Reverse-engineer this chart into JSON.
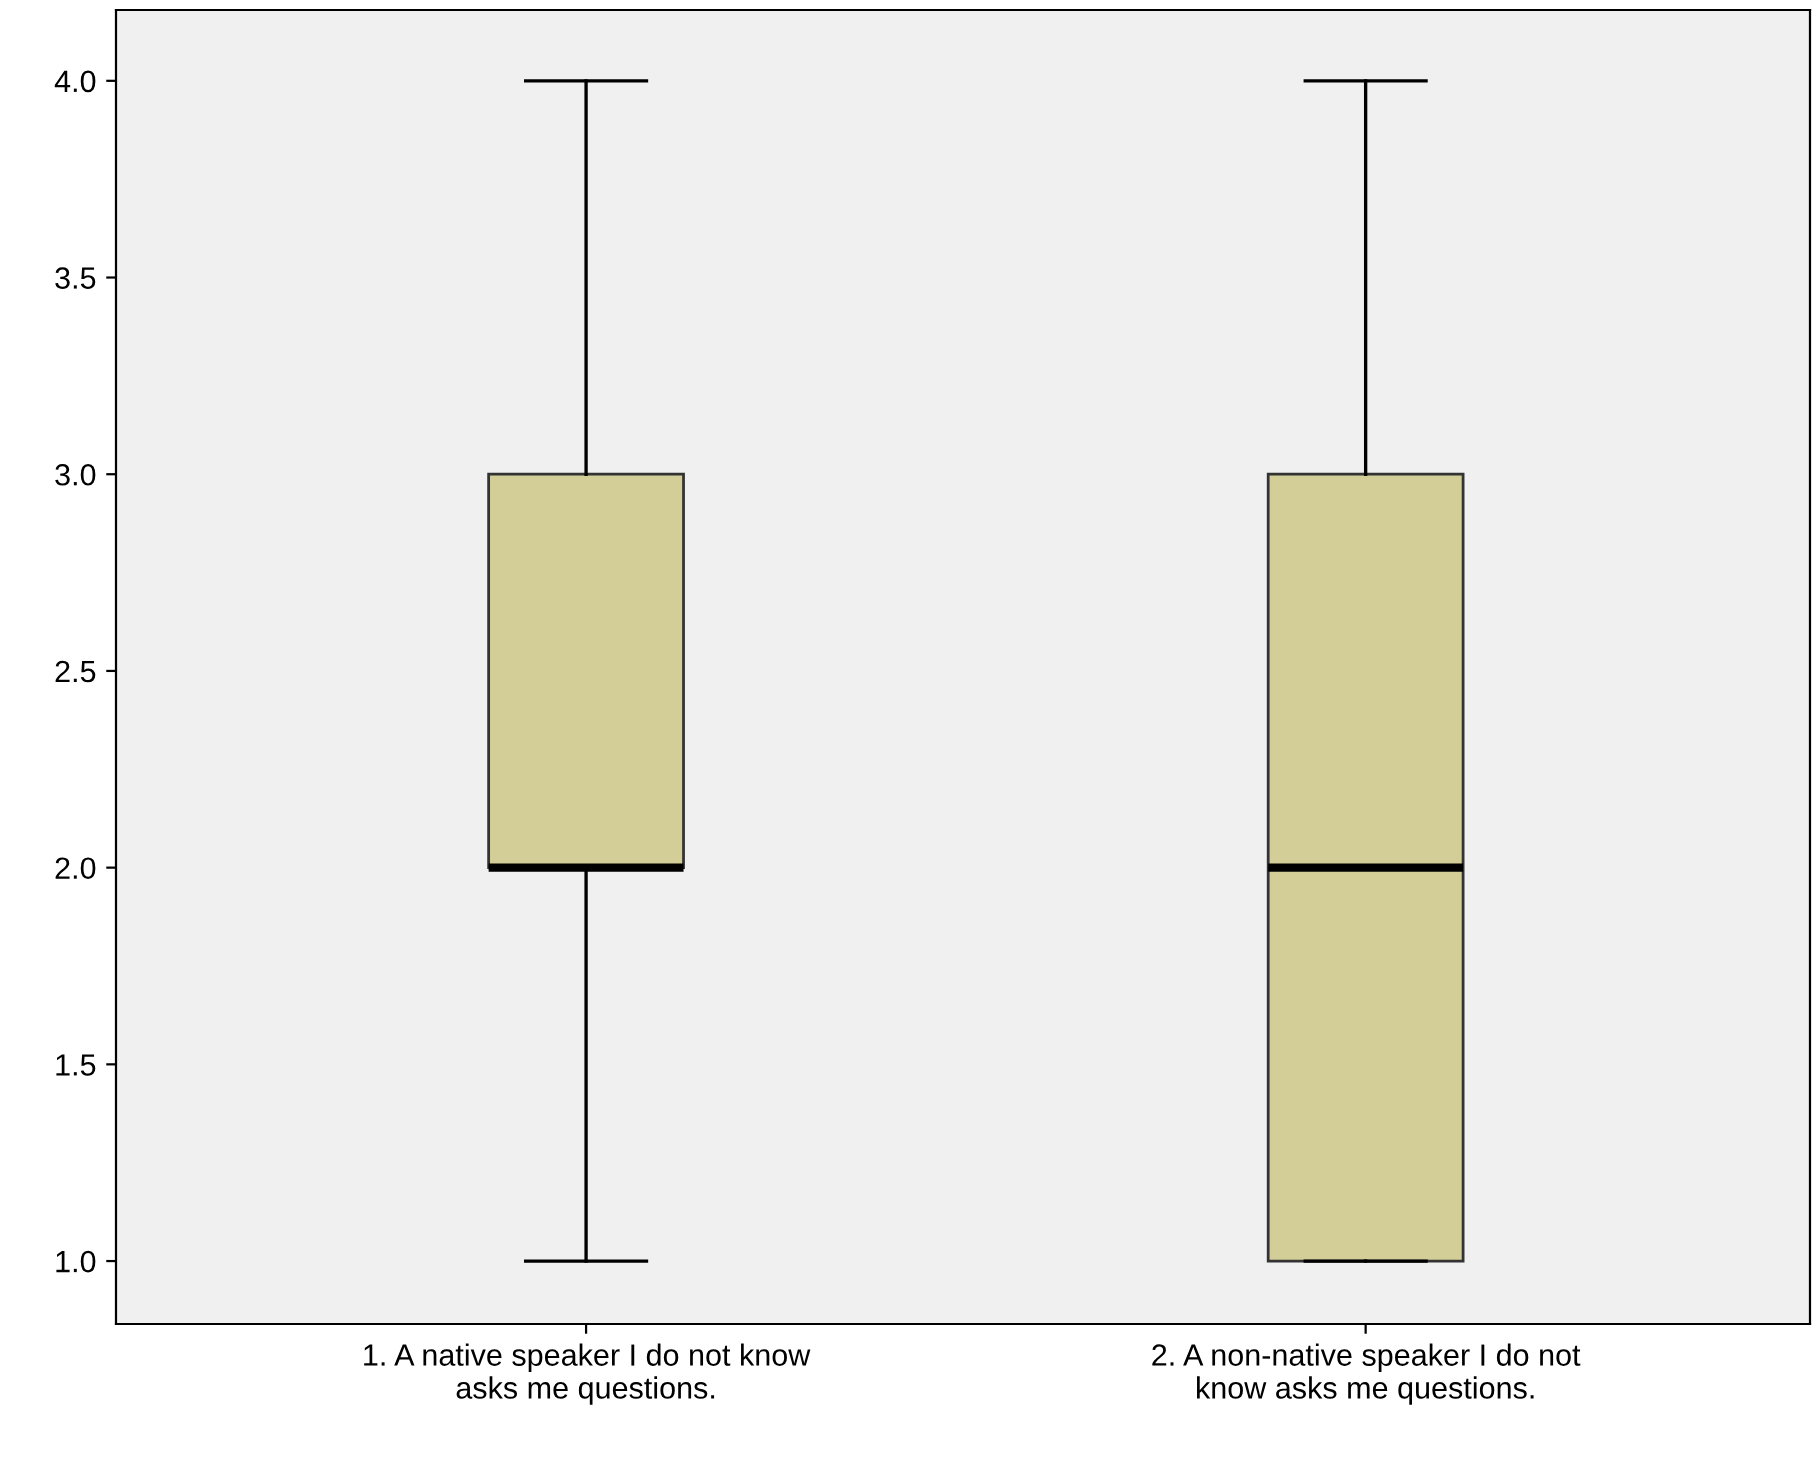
{
  "chart_data": {
    "type": "box",
    "categories": [
      "1. A native speaker I do not know\nasks me questions.",
      "2. A non-native speaker I do not\nknow asks me questions."
    ],
    "boxes": [
      {
        "low": 1.0,
        "q1": 2.0,
        "median": 2.0,
        "q3": 3.0,
        "high": 4.0
      },
      {
        "low": 1.0,
        "q1": 1.0,
        "median": 2.0,
        "q3": 3.0,
        "high": 4.0
      }
    ],
    "color": "#d3ce97",
    "ylim": [
      0.84,
      4.18
    ],
    "yticks": [
      {
        "value": 1,
        "label": "1.0"
      },
      1.5,
      {
        "value": 2,
        "label": "2.0"
      },
      2.5,
      {
        "value": 3,
        "label": "3.0"
      },
      3.5,
      {
        "value": 4,
        "label": "4.0"
      }
    ],
    "grid": false
  }
}
